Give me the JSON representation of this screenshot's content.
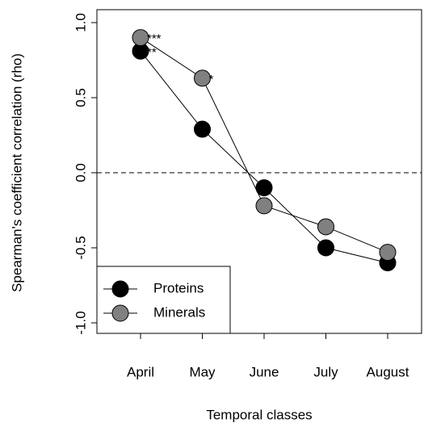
{
  "chart_data": {
    "type": "line",
    "xlabel": "Temporal classes",
    "ylabel": "Spearman's coefficient correlation (rho)",
    "categories": [
      "April",
      "May",
      "June",
      "July",
      "August"
    ],
    "series": [
      {
        "name": "Proteins",
        "color": "#000000",
        "values": [
          0.81,
          0.29,
          -0.1,
          -0.5,
          -0.6
        ],
        "annotations": [
          "**",
          null,
          null,
          null,
          null
        ]
      },
      {
        "name": "Minerals",
        "color": "#808080",
        "values": [
          0.9,
          0.63,
          -0.22,
          -0.36,
          -0.53
        ],
        "annotations": [
          "***",
          "*",
          null,
          null,
          null
        ]
      }
    ],
    "ylim": [
      -1.07,
      1.086
    ],
    "yticks": [
      {
        "value": -1,
        "label": "-1.0"
      },
      {
        "value": -0.5,
        "label": "-0.5"
      },
      {
        "value": 0,
        "label": "0.0"
      },
      {
        "value": 0.5,
        "label": "0.5"
      },
      {
        "value": 1,
        "label": "1.0"
      }
    ],
    "reference_line": 0,
    "legend": "bottom-left"
  }
}
